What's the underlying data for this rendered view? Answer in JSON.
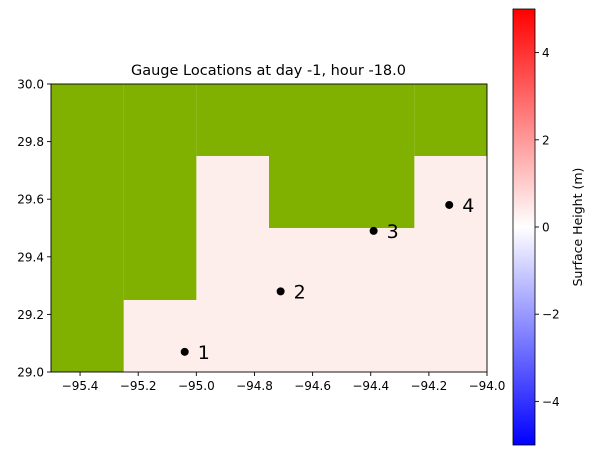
{
  "chart_data": {
    "type": "heatmap",
    "title": "Gauge Locations at day  -1, hour -18.0",
    "xlabel": "",
    "ylabel": "",
    "xlim": [
      -95.5,
      -94.0
    ],
    "ylim": [
      29.0,
      30.0
    ],
    "x_ticks": [
      -95.4,
      -95.2,
      -95.0,
      -94.8,
      -94.6,
      -94.4,
      -94.2,
      -94.0
    ],
    "x_tick_labels": [
      "−95.4",
      "−95.2",
      "−95.0",
      "−94.8",
      "−94.6",
      "−94.4",
      "−94.2",
      "−94.0"
    ],
    "y_ticks": [
      29.0,
      29.2,
      29.4,
      29.6,
      29.8,
      30.0
    ],
    "y_tick_labels": [
      "29.0",
      "29.2",
      "29.4",
      "29.6",
      "29.8",
      "30.0"
    ],
    "grid": false,
    "land_color": "#80b000",
    "water_color": "#fdeeec",
    "land_cells": [
      {
        "x0": -95.5,
        "x1": -95.25,
        "y0": 29.0,
        "y1": 30.0
      },
      {
        "x0": -95.25,
        "x1": -95.0,
        "y0": 29.25,
        "y1": 30.0
      },
      {
        "x0": -95.0,
        "x1": -94.75,
        "y0": 29.75,
        "y1": 30.0
      },
      {
        "x0": -94.75,
        "x1": -94.25,
        "y0": 29.5,
        "y1": 30.0
      },
      {
        "x0": -94.25,
        "x1": -94.0,
        "y0": 29.75,
        "y1": 30.0
      }
    ],
    "gauges": [
      {
        "label": "1",
        "x": -95.04,
        "y": 29.07
      },
      {
        "label": "2",
        "x": -94.71,
        "y": 29.28
      },
      {
        "label": "3",
        "x": -94.39,
        "y": 29.49
      },
      {
        "label": "4",
        "x": -94.13,
        "y": 29.58
      }
    ],
    "colorbar": {
      "label": "Surface Height (m)",
      "range": [
        -5,
        5
      ],
      "ticks": [
        4,
        2,
        0,
        -2,
        -4
      ],
      "tick_labels": [
        "4",
        "2",
        "0",
        "−2",
        "−4"
      ],
      "colormap": "bwr",
      "colors": [
        "#0000ff",
        "#ffffff",
        "#ff0000"
      ]
    }
  }
}
